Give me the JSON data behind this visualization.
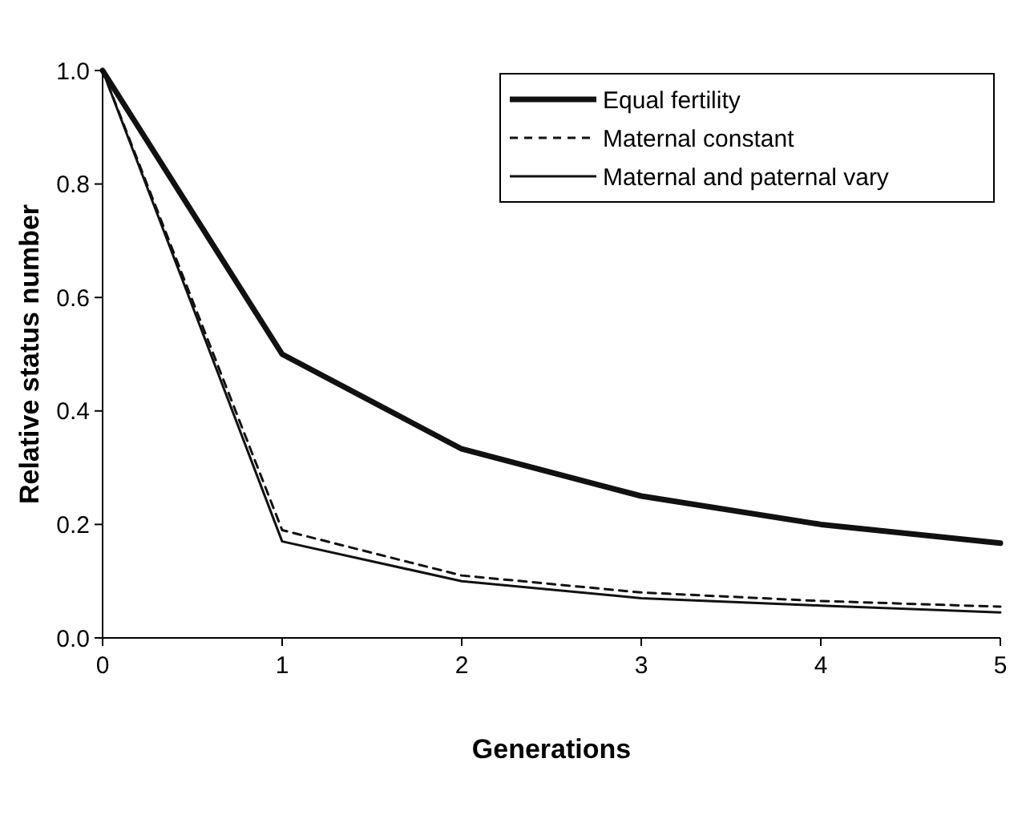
{
  "chart_data": {
    "type": "line",
    "xlabel": "Generations",
    "ylabel": "Relative status number",
    "x": [
      0,
      1,
      2,
      3,
      4,
      5
    ],
    "xlim": [
      0,
      5
    ],
    "xticks": [
      0,
      1,
      2,
      3,
      4,
      5
    ],
    "ylim": [
      0,
      1
    ],
    "yticks": [
      {
        "value": 0,
        "label": "0.0"
      },
      {
        "value": 0.2,
        "label": "0.2"
      },
      {
        "value": 0.4,
        "label": "0.4"
      },
      {
        "value": 0.6,
        "label": "0.6"
      },
      {
        "value": 0.8,
        "label": "0.8"
      },
      {
        "value": 1,
        "label": "1.0"
      }
    ],
    "grid": false,
    "legend": "top right",
    "marker": "none",
    "series": [
      {
        "name": "Equal fertility",
        "color": "#111111",
        "line_style": "solid",
        "values": [
          1,
          0.5,
          0.333,
          0.25,
          0.2,
          0.167
        ]
      },
      {
        "name": "Maternal constant",
        "color": "#111111",
        "line_style": "dashed",
        "values": [
          1,
          0.19,
          0.11,
          0.08,
          0.065,
          0.055
        ]
      },
      {
        "name": "Maternal and paternal vary",
        "color": "#111111",
        "line_style": "solid",
        "values": [
          1,
          0.17,
          0.1,
          0.07,
          0.057,
          0.045
        ]
      }
    ]
  }
}
